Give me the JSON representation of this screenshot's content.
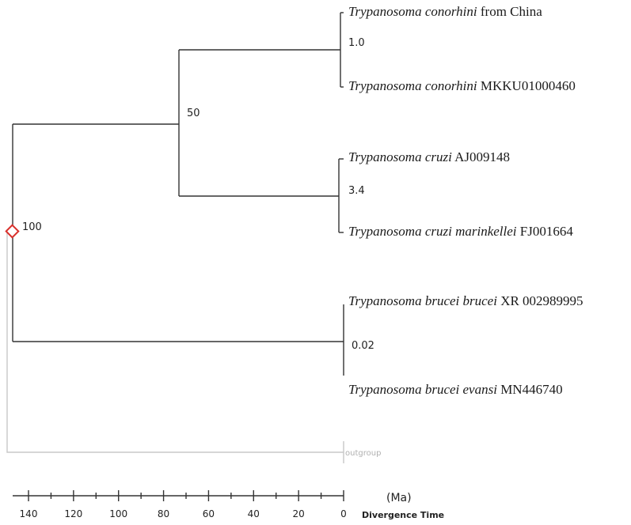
{
  "taxa": [
    {
      "genus": "Trypanosoma",
      "species": "conorhini",
      "suffix": " from China"
    },
    {
      "genus": "Trypanosoma",
      "species": "conorhini",
      "suffix": " MKKU01000460"
    },
    {
      "genus": "Trypanosoma",
      "species": "cruzi",
      "suffix": " AJ009148"
    },
    {
      "genus": "Trypanosoma",
      "species": "cruzi marinkellei",
      "suffix": " FJ001664"
    },
    {
      "genus": "Trypanosoma",
      "species": "brucei brucei",
      "suffix": " XR 002989995"
    },
    {
      "genus": "Trypanosoma",
      "species": "brucei evansi",
      "suffix": " MN446740"
    }
  ],
  "outgroup_label": "outgroup",
  "node_labels": {
    "root": "100",
    "conorhini_cruzi": "50",
    "conorhini": "1.0",
    "cruzi": "3.4",
    "brucei": "0.02"
  },
  "node_ages_ma": {
    "root": 148,
    "conorhini_cruzi": 73,
    "conorhini": 1.0,
    "cruzi": 3.4,
    "brucei": 0.02
  },
  "axis": {
    "unit": "(Ma)",
    "title": "Divergence Time",
    "ticks": [
      140,
      120,
      100,
      80,
      60,
      40,
      20,
      0
    ]
  },
  "colors": {
    "branch": "#333333",
    "outgroup": "#c8c8c8",
    "root_marker": "#d9302c"
  }
}
